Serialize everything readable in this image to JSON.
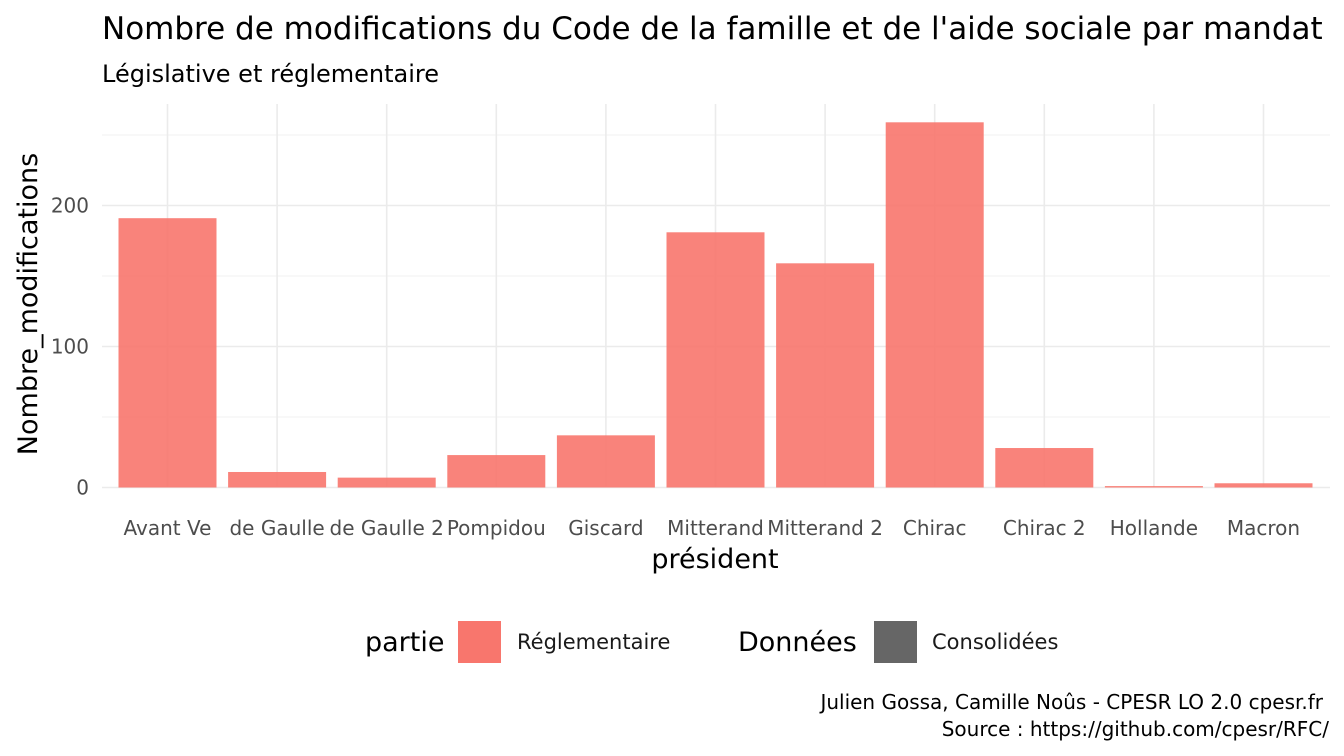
{
  "chart_data": {
    "type": "bar",
    "title": "Nombre de modifications du Code de la famille et de l'aide sociale par mandat",
    "subtitle": "Législative et réglementaire",
    "xlabel": "président",
    "ylabel": "Nombre_modifications",
    "categories": [
      "Avant Ve",
      "de Gaulle",
      "de Gaulle 2",
      "Pompidou",
      "Giscard",
      "Mitterand",
      "Mitterand 2",
      "Chirac",
      "Chirac 2",
      "Hollande",
      "Macron"
    ],
    "series": [
      {
        "name": "Réglementaire",
        "color": "#F8766D",
        "values": [
          191,
          11,
          7,
          23,
          37,
          181,
          159,
          259,
          28,
          1,
          3
        ]
      }
    ],
    "ylim": [
      0,
      270
    ],
    "y_ticks": [
      0,
      100,
      200
    ],
    "grid": true,
    "legend": {
      "position": "bottom",
      "groups": [
        {
          "title": "partie",
          "items": [
            {
              "label": "Réglementaire",
              "color": "#F8766D"
            }
          ]
        },
        {
          "title": "Données",
          "items": [
            {
              "label": "Consolidées",
              "color": "#666666"
            }
          ]
        }
      ]
    },
    "caption": [
      "Julien Gossa, Camille Noûs - CPESR LO 2.0 cpesr.fr",
      "Source : https://github.com/cpesr/RFC/"
    ]
  }
}
